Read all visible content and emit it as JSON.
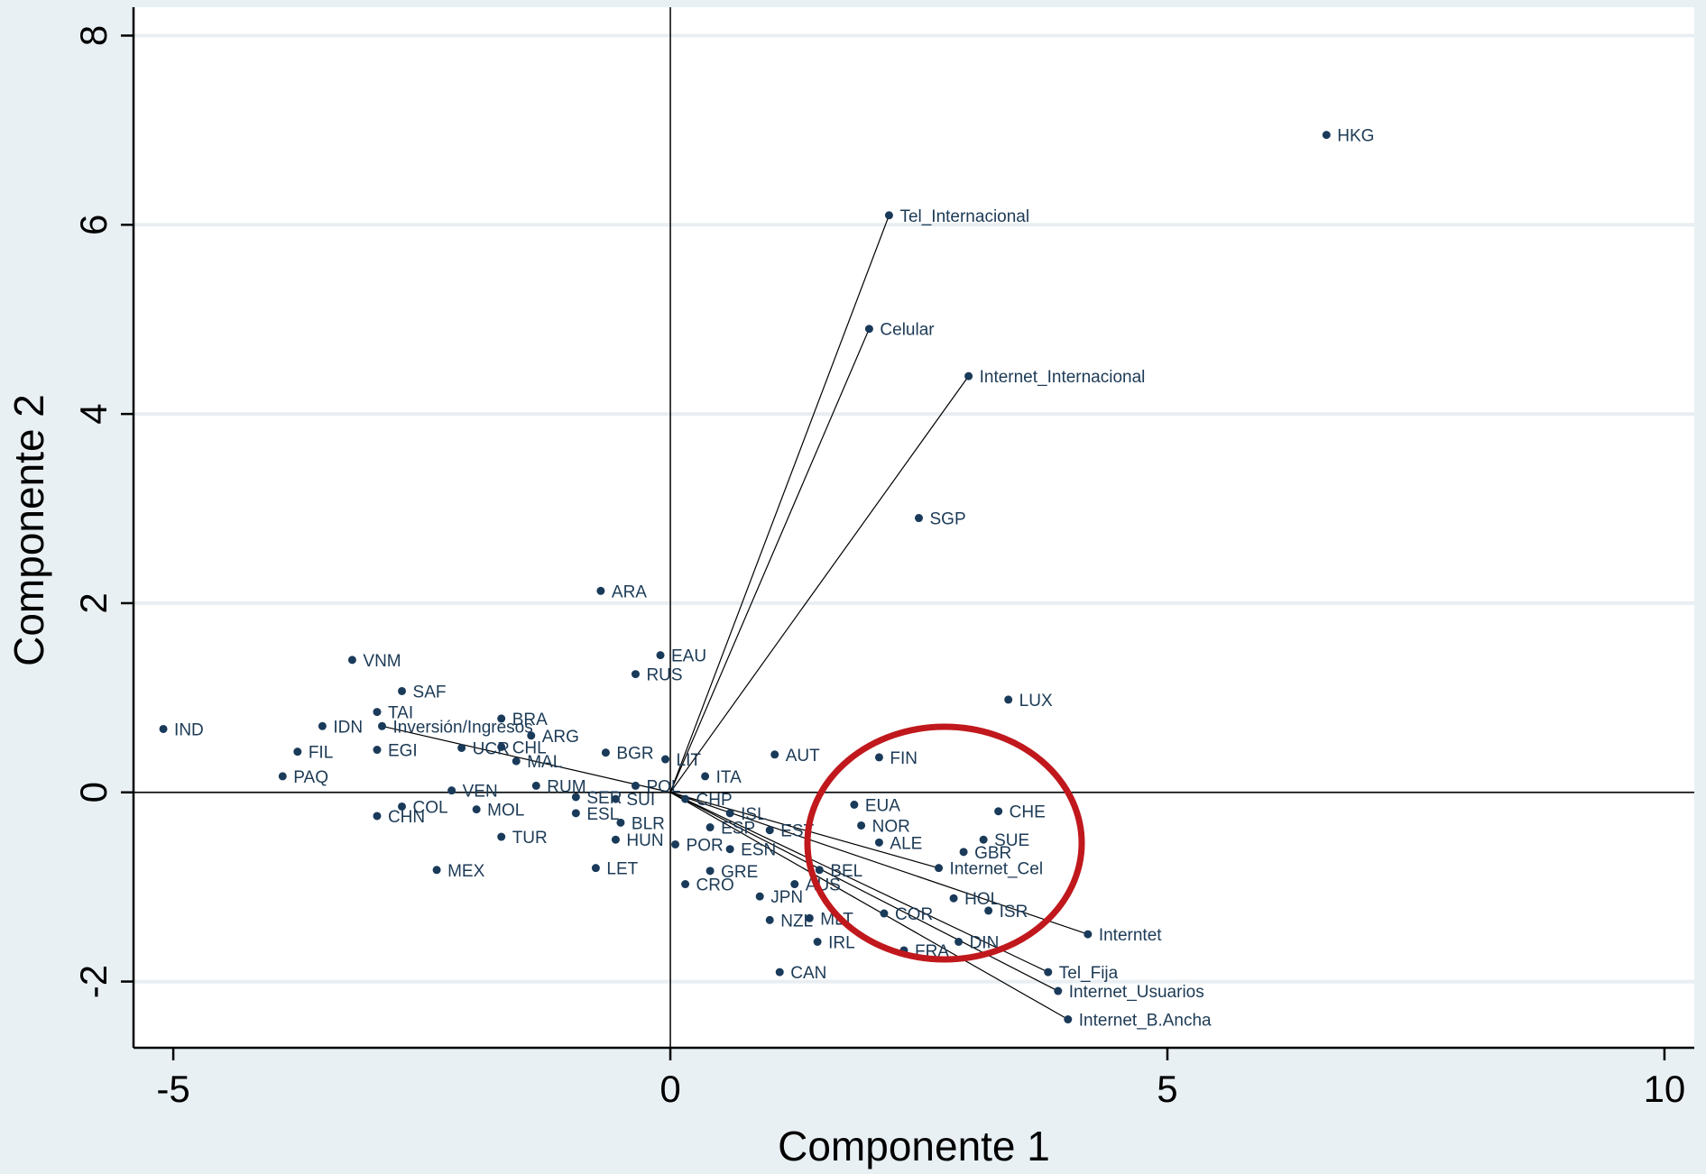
{
  "chart_data": {
    "type": "scatter",
    "title": "",
    "xlabel": "Componente 1",
    "ylabel": "Componente 2",
    "xlim": [
      -5.4,
      10.3
    ],
    "ylim": [
      -2.7,
      8.3
    ],
    "xticks": [
      -5,
      0,
      5,
      10
    ],
    "yticks": [
      -2,
      0,
      2,
      4,
      6,
      8
    ],
    "grid": true,
    "colors": {
      "background": "#e9f0f3",
      "plot_background": "#ffffff",
      "grid": "#e8eef2",
      "point": "#1a3a5a",
      "label": "#1c3a55",
      "vector": "#000000",
      "circle": "#c0181c"
    },
    "observations": [
      {
        "label": "HKG",
        "x": 6.6,
        "y": 6.95
      },
      {
        "label": "SGP",
        "x": 2.5,
        "y": 2.9
      },
      {
        "label": "ARA",
        "x": -0.7,
        "y": 2.13
      },
      {
        "label": "VNM",
        "x": -3.2,
        "y": 1.4
      },
      {
        "label": "EAU",
        "x": -0.1,
        "y": 1.45
      },
      {
        "label": "RUS",
        "x": -0.35,
        "y": 1.25
      },
      {
        "label": "SAF",
        "x": -2.7,
        "y": 1.07
      },
      {
        "label": "LUX",
        "x": 3.4,
        "y": 0.98
      },
      {
        "label": "IND",
        "x": -5.1,
        "y": 0.67
      },
      {
        "label": "IDN",
        "x": -3.5,
        "y": 0.7
      },
      {
        "label": "TAI",
        "x": -2.95,
        "y": 0.85
      },
      {
        "label": "BRA",
        "x": -1.7,
        "y": 0.78
      },
      {
        "label": "ARG",
        "x": -1.4,
        "y": 0.6
      },
      {
        "label": "FIL",
        "x": -3.75,
        "y": 0.43
      },
      {
        "label": "EGI",
        "x": -2.95,
        "y": 0.45
      },
      {
        "label": "UCR",
        "x": -2.1,
        "y": 0.47
      },
      {
        "label": "CHL",
        "x": -1.7,
        "y": 0.48
      },
      {
        "label": "MAL",
        "x": -1.55,
        "y": 0.33
      },
      {
        "label": "BGR",
        "x": -0.65,
        "y": 0.42
      },
      {
        "label": "LIT",
        "x": -0.05,
        "y": 0.35
      },
      {
        "label": "AUT",
        "x": 1.05,
        "y": 0.4
      },
      {
        "label": "FIN",
        "x": 2.1,
        "y": 0.37
      },
      {
        "label": "PAQ",
        "x": -3.9,
        "y": 0.17
      },
      {
        "label": "ITA",
        "x": 0.35,
        "y": 0.17
      },
      {
        "label": "VEN",
        "x": -2.2,
        "y": 0.02
      },
      {
        "label": "RUM",
        "x": -1.35,
        "y": 0.07
      },
      {
        "label": "POL",
        "x": -0.35,
        "y": 0.07
      },
      {
        "label": "SER",
        "x": -0.95,
        "y": -0.05
      },
      {
        "label": "SUI",
        "x": -0.55,
        "y": -0.07
      },
      {
        "label": "CHP",
        "x": 0.15,
        "y": -0.07
      },
      {
        "label": "CHN",
        "x": -2.95,
        "y": -0.25
      },
      {
        "label": "COL",
        "x": -2.7,
        "y": -0.15
      },
      {
        "label": "MOL",
        "x": -1.95,
        "y": -0.18
      },
      {
        "label": "ESL",
        "x": -0.95,
        "y": -0.22
      },
      {
        "label": "BLR",
        "x": -0.5,
        "y": -0.32
      },
      {
        "label": "ISL",
        "x": 0.6,
        "y": -0.22
      },
      {
        "label": "ESP",
        "x": 0.4,
        "y": -0.37
      },
      {
        "label": "EST",
        "x": 1.0,
        "y": -0.4
      },
      {
        "label": "EUA",
        "x": 1.85,
        "y": -0.13
      },
      {
        "label": "NOR",
        "x": 1.92,
        "y": -0.35
      },
      {
        "label": "CHE",
        "x": 3.3,
        "y": -0.2
      },
      {
        "label": "TUR",
        "x": -1.7,
        "y": -0.47
      },
      {
        "label": "HUN",
        "x": -0.55,
        "y": -0.5
      },
      {
        "label": "POR",
        "x": 0.05,
        "y": -0.55
      },
      {
        "label": "ESN",
        "x": 0.6,
        "y": -0.6
      },
      {
        "label": "ALE",
        "x": 2.1,
        "y": -0.53
      },
      {
        "label": "SUE",
        "x": 3.15,
        "y": -0.5
      },
      {
        "label": "GBR",
        "x": 2.95,
        "y": -0.63
      },
      {
        "label": "MEX",
        "x": -2.35,
        "y": -0.82
      },
      {
        "label": "LET",
        "x": -0.75,
        "y": -0.8
      },
      {
        "label": "GRE",
        "x": 0.4,
        "y": -0.83
      },
      {
        "label": "BEL",
        "x": 1.5,
        "y": -0.82
      },
      {
        "label": "CRO",
        "x": 0.15,
        "y": -0.97
      },
      {
        "label": "AUS",
        "x": 1.25,
        "y": -0.97
      },
      {
        "label": "JPN",
        "x": 0.9,
        "y": -1.1
      },
      {
        "label": "HOL",
        "x": 2.85,
        "y": -1.12
      },
      {
        "label": "COR",
        "x": 2.15,
        "y": -1.28
      },
      {
        "label": "ISR",
        "x": 3.2,
        "y": -1.25
      },
      {
        "label": "NZL",
        "x": 1.0,
        "y": -1.35
      },
      {
        "label": "MLT",
        "x": 1.4,
        "y": -1.33
      },
      {
        "label": "IRL",
        "x": 1.48,
        "y": -1.58
      },
      {
        "label": "DIN",
        "x": 2.9,
        "y": -1.58
      },
      {
        "label": "FRA",
        "x": 2.35,
        "y": -1.67
      },
      {
        "label": "CAN",
        "x": 1.1,
        "y": -1.9
      }
    ],
    "variables": [
      {
        "label": "Tel_Internacional",
        "x": 2.2,
        "y": 6.1
      },
      {
        "label": "Celular",
        "x": 2.0,
        "y": 4.9
      },
      {
        "label": "Internet_Internacional",
        "x": 3.0,
        "y": 4.4
      },
      {
        "label": "Inversión/Ingresos",
        "x": -2.9,
        "y": 0.7
      },
      {
        "label": "Internet_Cel",
        "x": 2.7,
        "y": -0.8
      },
      {
        "label": "Interntet",
        "x": 4.2,
        "y": -1.5
      },
      {
        "label": "Tel_Fija",
        "x": 3.8,
        "y": -1.9
      },
      {
        "label": "Internet_Usuarios",
        "x": 3.9,
        "y": -2.1
      },
      {
        "label": "Internet_B.Ancha",
        "x": 4.0,
        "y": -2.4
      }
    ]
  }
}
